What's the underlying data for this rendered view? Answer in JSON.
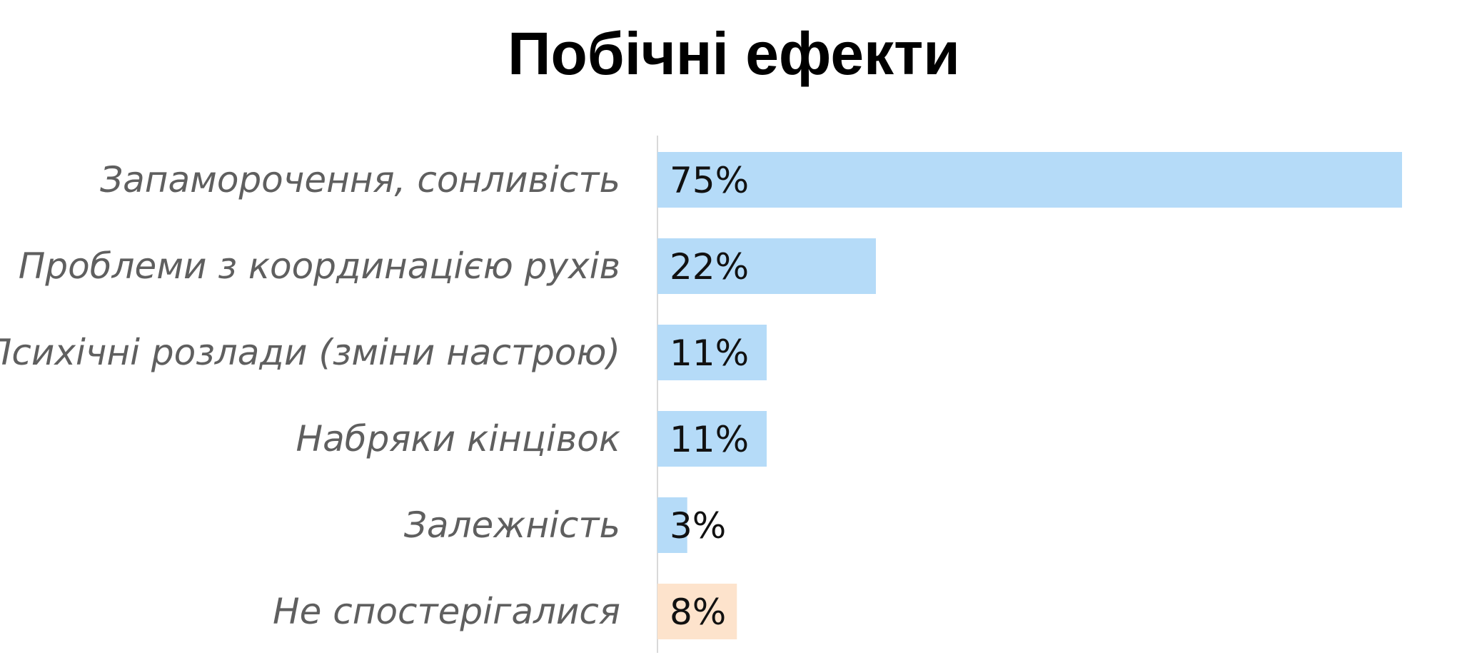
{
  "chart_data": {
    "type": "bar",
    "orientation": "horizontal",
    "title": "Побічні ефекти",
    "xlabel": "",
    "ylabel": "",
    "categories": [
      "Запаморочення, сонливість",
      "Проблеми з координацією рухів",
      "Психічні розлади (зміни настрою)",
      "Набряки кінцівок",
      "Залежність",
      "Не спостерігалися"
    ],
    "values": [
      75,
      22,
      11,
      11,
      3,
      8
    ],
    "value_labels": [
      "75%",
      "22%",
      "11%",
      "11%",
      "3%",
      "8%"
    ],
    "unit": "%",
    "xlim": [
      0,
      75
    ],
    "grid": false,
    "legend": "none",
    "colors": [
      "#b5dbf8",
      "#b5dbf8",
      "#b5dbf8",
      "#b5dbf8",
      "#b5dbf8",
      "#fde3cc"
    ]
  }
}
